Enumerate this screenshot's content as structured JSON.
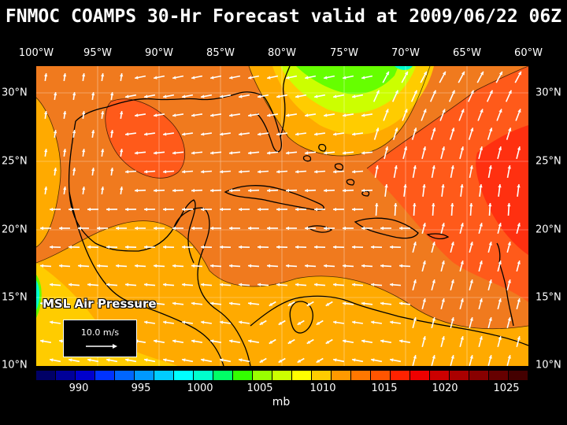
{
  "title": "FNMOC COAMPS 30-Hr Forecast valid at 2009/06/22 06Z",
  "lon_labels": [
    "100°W",
    "95°W",
    "90°W",
    "85°W",
    "80°W",
    "75°W",
    "70°W",
    "65°W",
    "60°W"
  ],
  "lat_labels": [
    "30°N",
    "25°N",
    "20°N",
    "15°N",
    "10°N"
  ],
  "overlay_title": "MSL Air Pressure",
  "reference_vector": {
    "label": "10.0 m/s"
  },
  "colorbar": {
    "unit": "mb",
    "tick_labels": [
      "990",
      "995",
      "1000",
      "1005",
      "1010",
      "1015",
      "1020",
      "1025"
    ],
    "colors": [
      "#000066",
      "#000099",
      "#0000cc",
      "#0033ff",
      "#0066ff",
      "#0099ff",
      "#00ccff",
      "#00ffff",
      "#00ffcc",
      "#00ff66",
      "#33ff00",
      "#99ff00",
      "#ccff00",
      "#ffff00",
      "#ffcc00",
      "#ff9900",
      "#ff7700",
      "#ff5500",
      "#ff2200",
      "#ee0000",
      "#cc0000",
      "#aa0000",
      "#880000",
      "#660000",
      "#440000"
    ]
  },
  "field_colors": {
    "c1008": "#ffcc00",
    "c1010": "#ffaa00",
    "c1012": "#f07a1e",
    "c1014": "#ff5a1a",
    "c1016": "#ff3010",
    "c1006": "#ccff00",
    "c1004": "#66ff00",
    "c1002": "#00ffcc"
  }
}
